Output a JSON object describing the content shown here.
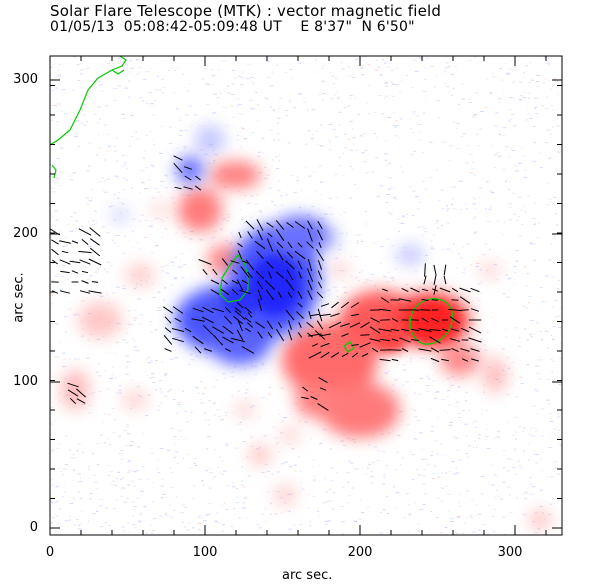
{
  "header": {
    "title": "Solar Flare Telescope (MTK) : vector magnetic field",
    "subtitle": "01/05/13  05:08:42-05:09:48 UT    E 8'37\"  N 6'50\""
  },
  "axes": {
    "xlabel": "arc sec.",
    "ylabel": "arc sec.",
    "x_ticks": [
      "0",
      "100",
      "200",
      "300"
    ],
    "y_ticks": [
      "0",
      "100",
      "200",
      "300"
    ]
  },
  "colors": {
    "positive_polarity": "#ff1a1a",
    "negative_polarity": "#1e28ff",
    "contour": "#00cc00",
    "vectors": "#000000",
    "noise_blue": "#c8ccff",
    "noise_red": "#ffc8c8"
  }
}
